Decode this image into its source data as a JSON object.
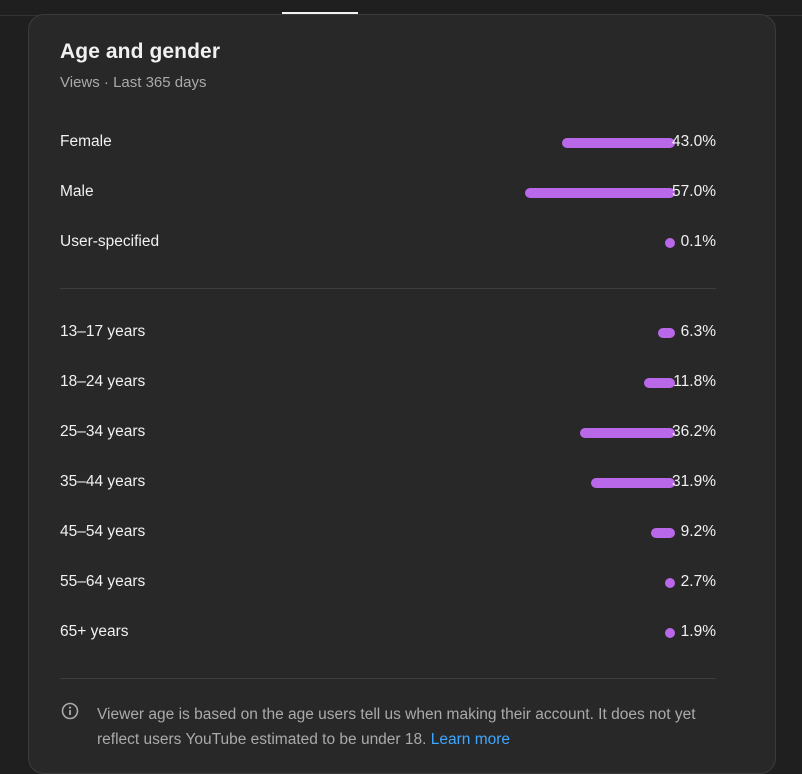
{
  "card": {
    "title": "Age and gender",
    "subtitle": "Views · Last 365 days"
  },
  "colors": {
    "bar": "#b968ea",
    "link": "#3ea6ff"
  },
  "gender": [
    {
      "label": "Female",
      "value": "43.0%",
      "percent": 43.0
    },
    {
      "label": "Male",
      "value": "57.0%",
      "percent": 57.0
    },
    {
      "label": "User-specified",
      "value": "0.1%",
      "percent": 0.1
    }
  ],
  "age": [
    {
      "label": "13–17 years",
      "value": "6.3%",
      "percent": 6.3
    },
    {
      "label": "18–24 years",
      "value": "11.8%",
      "percent": 11.8
    },
    {
      "label": "25–34 years",
      "value": "36.2%",
      "percent": 36.2
    },
    {
      "label": "35–44 years",
      "value": "31.9%",
      "percent": 31.9
    },
    {
      "label": "45–54 years",
      "value": "9.2%",
      "percent": 9.2
    },
    {
      "label": "55–64 years",
      "value": "2.7%",
      "percent": 2.7
    },
    {
      "label": "65+ years",
      "value": "1.9%",
      "percent": 1.9
    }
  ],
  "footnote": {
    "icon": "info-icon",
    "text": "Viewer age is based on the age users tell us when making their account. It does not yet reflect users YouTube estimated to be under 18.",
    "link": "Learn more"
  }
}
